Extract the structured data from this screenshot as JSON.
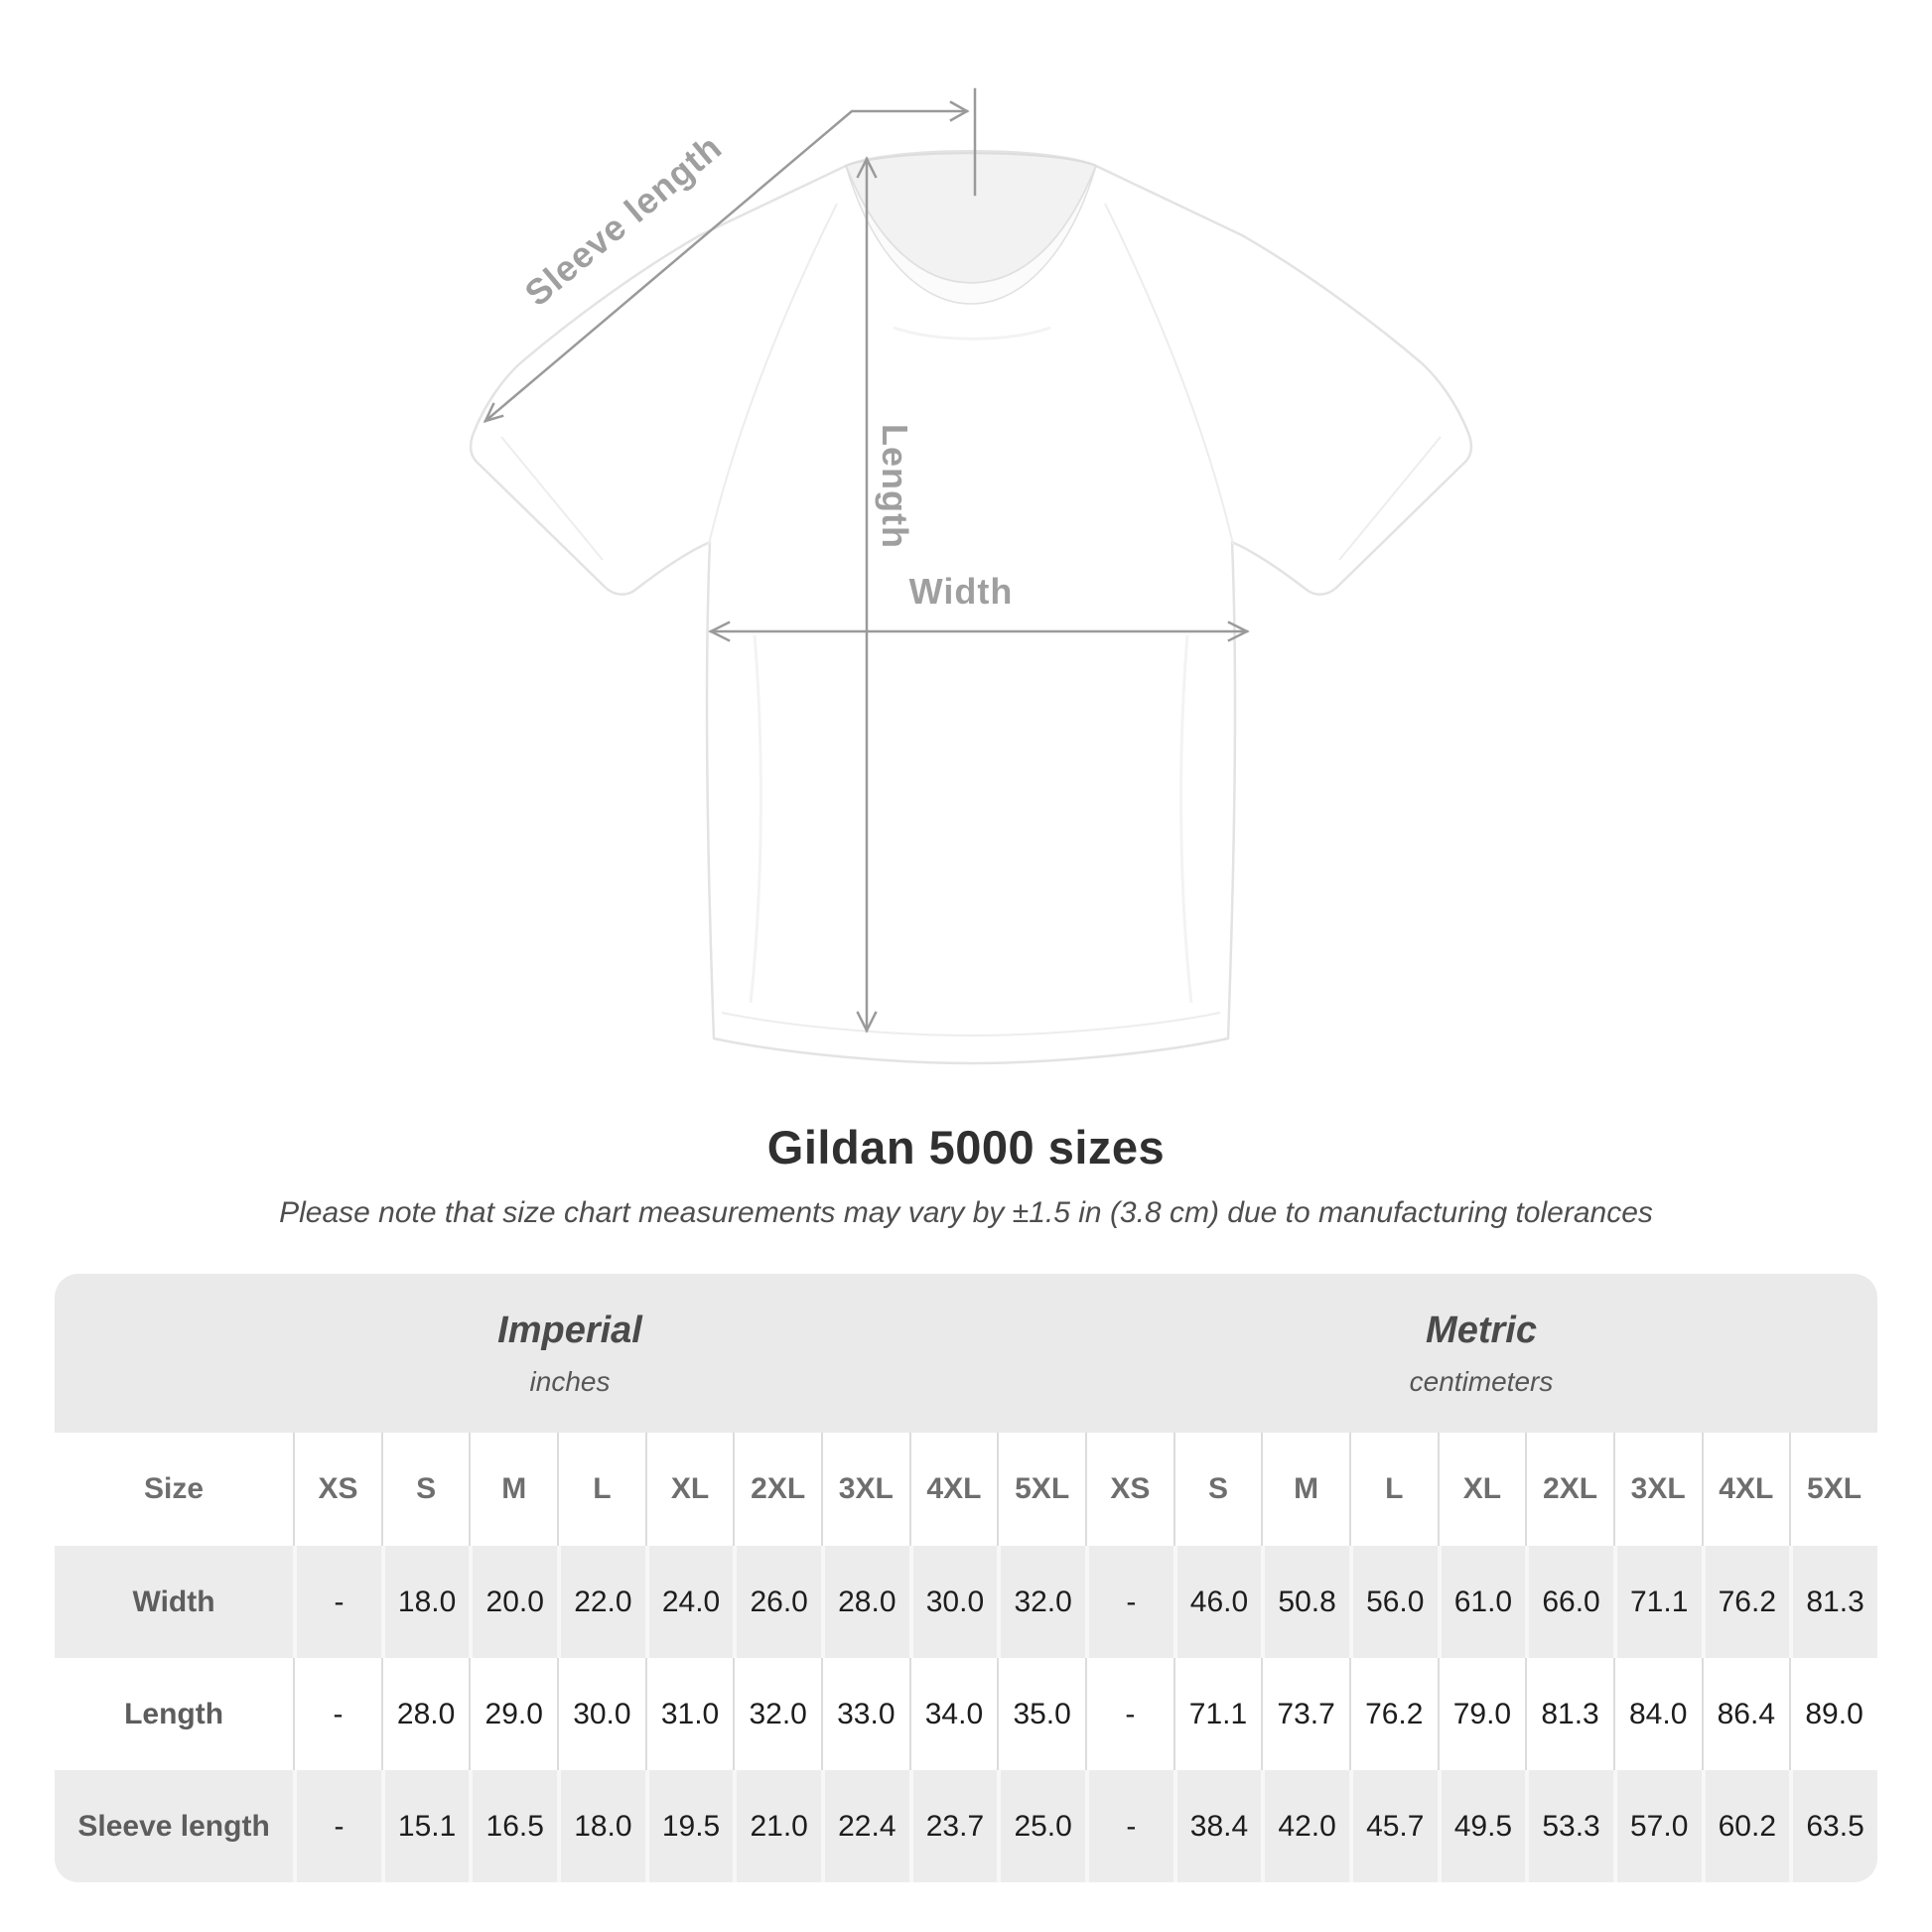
{
  "diagram": {
    "labels": {
      "sleeve_length": "Sleeve length",
      "length": "Length",
      "width": "Width"
    }
  },
  "heading": {
    "title": "Gildan 5000 sizes",
    "note": "Please note that size chart measurements may vary by ±1.5 in (3.8 cm) due to manufacturing tolerances"
  },
  "chart_data": {
    "type": "table",
    "title": "Gildan 5000 sizes",
    "unit_groups": [
      {
        "label": "Imperial",
        "sublabel": "inches"
      },
      {
        "label": "Metric",
        "sublabel": "centimeters"
      }
    ],
    "size_header": "Size",
    "sizes": [
      "XS",
      "S",
      "M",
      "L",
      "XL",
      "2XL",
      "3XL",
      "4XL",
      "5XL"
    ],
    "rows": [
      {
        "label": "Width",
        "imperial": [
          "-",
          "18.0",
          "20.0",
          "22.0",
          "24.0",
          "26.0",
          "28.0",
          "30.0",
          "32.0"
        ],
        "metric": [
          "-",
          "46.0",
          "50.8",
          "56.0",
          "61.0",
          "66.0",
          "71.1",
          "76.2",
          "81.3"
        ]
      },
      {
        "label": "Length",
        "imperial": [
          "-",
          "28.0",
          "29.0",
          "30.0",
          "31.0",
          "32.0",
          "33.0",
          "34.0",
          "35.0"
        ],
        "metric": [
          "-",
          "71.1",
          "73.7",
          "76.2",
          "79.0",
          "81.3",
          "84.0",
          "86.4",
          "89.0"
        ]
      },
      {
        "label": "Sleeve length",
        "imperial": [
          "-",
          "15.1",
          "16.5",
          "18.0",
          "19.5",
          "21.0",
          "22.4",
          "23.7",
          "25.0"
        ],
        "metric": [
          "-",
          "38.4",
          "42.0",
          "45.7",
          "49.5",
          "53.3",
          "57.0",
          "60.2",
          "63.5"
        ]
      }
    ]
  },
  "colors": {
    "annotation_gray": "#9a9a9a",
    "annotation_label": "#9f9f9f",
    "title_text": "#303030",
    "note_text": "#4e4e4e",
    "header_band_bg": "#eaeaea",
    "row_stripe_bg": "#ececec",
    "value_text": "#1d1d1d",
    "row_label_text": "#5d5d5d"
  }
}
